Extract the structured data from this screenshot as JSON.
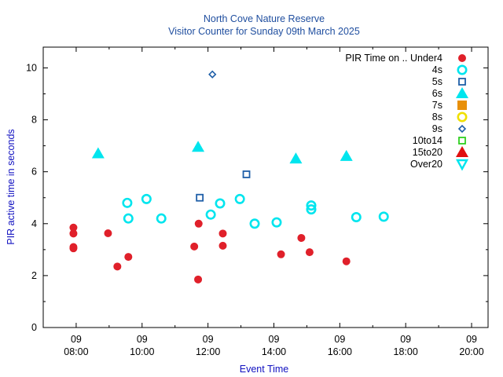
{
  "chart_data": {
    "type": "scatter",
    "title": "North Cove Nature Reserve",
    "subtitle": "Visitor Counter for Sunday 09th March 2025",
    "xlabel": "Event Time",
    "ylabel": "PIR active time in seconds",
    "xlim": [
      "07:00",
      "20:30"
    ],
    "ylim": [
      0,
      10.8
    ],
    "y_ticks": [
      "0",
      "2",
      "4",
      "6",
      "8",
      "10"
    ],
    "x_ticks": [
      {
        "day": "09",
        "time": "08:00"
      },
      {
        "day": "09",
        "time": "10:00"
      },
      {
        "day": "09",
        "time": "12:00"
      },
      {
        "day": "09",
        "time": "14:00"
      },
      {
        "day": "09",
        "time": "16:00"
      },
      {
        "day": "09",
        "time": "18:00"
      },
      {
        "day": "09",
        "time": "20:00"
      }
    ],
    "grid": false,
    "legend_title": "PIR Time on ..",
    "legend_position": "top-right",
    "series": [
      {
        "name": "Under4",
        "marker": "filled-circle",
        "color": "#e0202a",
        "points": [
          [
            "07:55",
            3.85
          ],
          [
            "07:55",
            3.62
          ],
          [
            "07:55",
            3.1
          ],
          [
            "07:55",
            3.05
          ],
          [
            "08:58",
            3.63
          ],
          [
            "09:15",
            2.35
          ],
          [
            "09:35",
            2.72
          ],
          [
            "11:35",
            3.12
          ],
          [
            "11:42",
            1.85
          ],
          [
            "11:43",
            4.0
          ],
          [
            "12:27",
            3.62
          ],
          [
            "12:27",
            3.15
          ],
          [
            "14:13",
            2.82
          ],
          [
            "14:50",
            3.45
          ],
          [
            "15:05",
            2.9
          ],
          [
            "16:12",
            2.55
          ]
        ]
      },
      {
        "name": "4s",
        "marker": "open-circle",
        "color": "#00e5ee",
        "points": [
          [
            "09:33",
            4.8
          ],
          [
            "09:35",
            4.2
          ],
          [
            "10:08",
            4.95
          ],
          [
            "10:35",
            4.2
          ],
          [
            "12:05",
            4.35
          ],
          [
            "12:22",
            4.78
          ],
          [
            "12:58",
            4.95
          ],
          [
            "13:25",
            4.0
          ],
          [
            "14:05",
            4.05
          ],
          [
            "15:08",
            4.7
          ],
          [
            "15:08",
            4.55
          ],
          [
            "16:30",
            4.25
          ],
          [
            "17:20",
            4.27
          ]
        ]
      },
      {
        "name": "5s",
        "marker": "open-square",
        "color": "#1f5fa8",
        "points": [
          [
            "11:45",
            5.0
          ],
          [
            "13:10",
            5.9
          ]
        ]
      },
      {
        "name": "6s",
        "marker": "filled-triangle",
        "color": "#00e5ee",
        "points": [
          [
            "08:40",
            6.7
          ],
          [
            "11:42",
            6.95
          ],
          [
            "14:40",
            6.5
          ],
          [
            "16:12",
            6.6
          ]
        ]
      },
      {
        "name": "7s",
        "marker": "filled-square",
        "color": "#e8900a",
        "points": []
      },
      {
        "name": "8s",
        "marker": "open-circle",
        "color": "#f0e000",
        "points": []
      },
      {
        "name": "9s",
        "marker": "open-diamond",
        "color": "#1f5fa8",
        "points": [
          [
            "12:08",
            9.75
          ]
        ]
      },
      {
        "name": "10to14",
        "marker": "open-square",
        "color": "#30d020",
        "points": []
      },
      {
        "name": "15to20",
        "marker": "filled-triangle",
        "color": "#e01010",
        "points": []
      },
      {
        "name": "Over20",
        "marker": "open-triangle-down",
        "color": "#00e5ee",
        "points": []
      }
    ]
  }
}
